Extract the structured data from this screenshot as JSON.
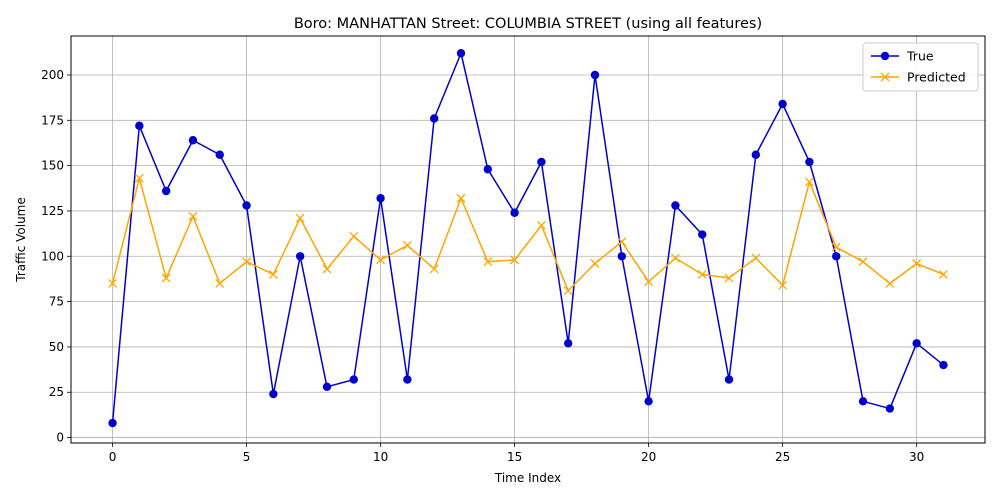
{
  "chart_data": {
    "type": "line",
    "title": "Boro: MANHATTAN Street: COLUMBIA STREET (using all features)",
    "xlabel": "Time Index",
    "ylabel": "Traffic Volume",
    "xlim": [
      -1.55,
      32.55
    ],
    "ylim": [
      -3,
      221.5
    ],
    "x_ticks": [
      0,
      5,
      10,
      15,
      20,
      25,
      30
    ],
    "y_ticks": [
      0,
      25,
      50,
      75,
      100,
      125,
      150,
      175,
      200
    ],
    "grid": true,
    "legend_position": "top-right",
    "x": [
      0,
      1,
      2,
      3,
      4,
      5,
      6,
      7,
      8,
      9,
      10,
      11,
      12,
      13,
      14,
      15,
      16,
      17,
      18,
      19,
      20,
      21,
      22,
      23,
      24,
      25,
      26,
      27,
      28,
      29,
      30,
      31
    ],
    "series": [
      {
        "name": "True",
        "color": "#0000cc",
        "marker": "circle",
        "values": [
          8,
          172,
          136,
          164,
          156,
          128,
          24,
          100,
          28,
          32,
          132,
          32,
          176,
          212,
          148,
          124,
          152,
          52,
          200,
          100,
          20,
          128,
          112,
          32,
          156,
          184,
          152,
          100,
          20,
          16,
          52,
          40
        ]
      },
      {
        "name": "Predicted",
        "color": "#ffa500",
        "marker": "x",
        "values": [
          85,
          143,
          88,
          122,
          85,
          97,
          90,
          121,
          93,
          111,
          98,
          106,
          93,
          132,
          97,
          98,
          117,
          81,
          96,
          108,
          86,
          99,
          90,
          88,
          99,
          84,
          141,
          105,
          97,
          85,
          96,
          90
        ]
      }
    ]
  }
}
